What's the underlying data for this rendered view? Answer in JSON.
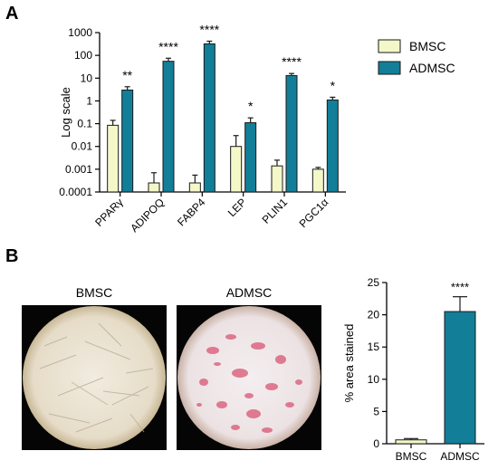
{
  "panel_a": {
    "letter": "A"
  },
  "panel_b": {
    "letter": "B",
    "image_labels": [
      "BMSC",
      "ADMSC"
    ]
  },
  "colors": {
    "bmsc": "#f4f7c8",
    "admsc": "#127e98",
    "stroke": "#1a1a1a"
  },
  "chart_data": [
    {
      "type": "bar",
      "scale": "log",
      "ylabel": "Log scale",
      "categories": [
        "PPARγ",
        "ADIPOQ",
        "FABP4",
        "LEP",
        "PLIN1",
        "PGC1α"
      ],
      "series": [
        {
          "name": "BMSC",
          "values": [
            0.085,
            0.00025,
            0.00025,
            0.01,
            0.0014,
            0.001
          ],
          "errors_upper": [
            0.14,
            0.0007,
            0.00055,
            0.03,
            0.0025,
            0.0012
          ]
        },
        {
          "name": "ADMSC",
          "values": [
            3.0,
            55,
            320,
            0.11,
            13,
            1.1
          ],
          "errors_upper": [
            4.2,
            75,
            420,
            0.18,
            16,
            1.45
          ]
        }
      ],
      "annotations": [
        "**",
        "****",
        "****",
        "*",
        "****",
        "*"
      ],
      "yticks": [
        "0.0001",
        "0.001",
        "0.01",
        "0.1",
        "1",
        "10",
        "100",
        "1000"
      ],
      "ylim": [
        0.0001,
        1000
      ],
      "legend": "top-right",
      "grid": false
    },
    {
      "type": "bar",
      "ylabel": "% area stained",
      "categories": [
        "BMSC",
        "ADMSC"
      ],
      "values": [
        0.6,
        20.5
      ],
      "errors_upper": [
        0.8,
        22.8
      ],
      "annotations": [
        "",
        "****"
      ],
      "yticks": [
        "0",
        "5",
        "10",
        "15",
        "20",
        "25"
      ],
      "ylim": [
        0,
        25
      ],
      "grid": false
    }
  ]
}
